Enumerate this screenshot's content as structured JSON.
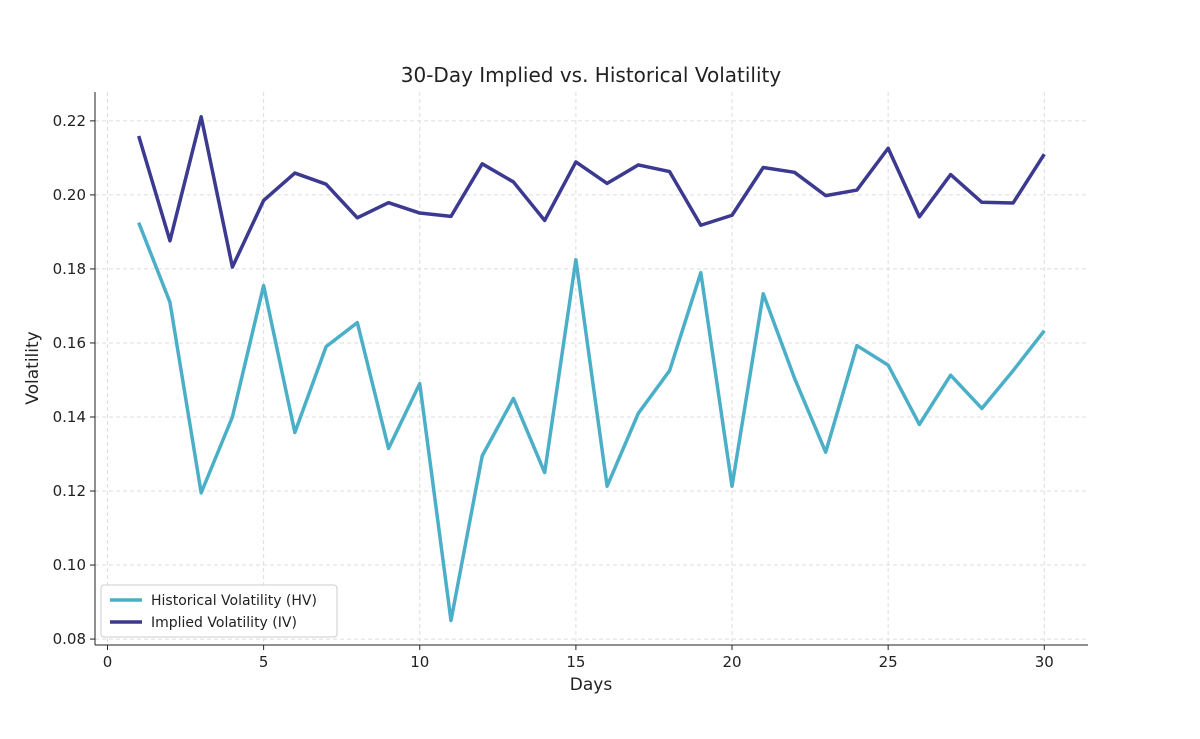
{
  "chart_data": {
    "type": "line",
    "title": "30-Day Implied vs. Historical Volatility",
    "xlabel": "Days",
    "ylabel": "Volatility",
    "xlim": [
      -0.4,
      31.4
    ],
    "ylim": [
      0.0784,
      0.2278
    ],
    "xticks": [
      0,
      5,
      10,
      15,
      20,
      25,
      30
    ],
    "yticks": [
      0.08,
      0.1,
      0.12,
      0.14,
      0.16,
      0.18,
      0.2,
      0.22
    ],
    "ytick_labels": [
      "0.08",
      "0.10",
      "0.12",
      "0.14",
      "0.16",
      "0.18",
      "0.20",
      "0.22"
    ],
    "grid": true,
    "legend_position": "lower-left",
    "x": [
      1,
      2,
      3,
      4,
      5,
      6,
      7,
      8,
      9,
      10,
      11,
      12,
      13,
      14,
      15,
      16,
      17,
      18,
      19,
      20,
      21,
      22,
      23,
      24,
      25,
      26,
      27,
      28,
      29,
      30
    ],
    "series": [
      {
        "name": "Historical Volatility (HV)",
        "color": "#4bafc8",
        "values": [
          0.1925,
          0.171,
          0.1195,
          0.14,
          0.1755,
          0.1358,
          0.159,
          0.1655,
          0.1315,
          0.149,
          0.085,
          0.1295,
          0.145,
          0.125,
          0.1825,
          0.1213,
          0.141,
          0.1525,
          0.179,
          0.1213,
          0.1733,
          0.1505,
          0.1305,
          0.1593,
          0.154,
          0.138,
          0.1513,
          0.1423,
          0.1525,
          0.1633
        ]
      },
      {
        "name": "Implied Volatility (IV)",
        "color": "#3b3990",
        "values": [
          0.2159,
          0.1876,
          0.2211,
          0.1805,
          0.1985,
          0.2059,
          0.2029,
          0.1938,
          0.1979,
          0.1951,
          0.1942,
          0.2084,
          0.2035,
          0.1931,
          0.2089,
          0.2031,
          0.2081,
          0.2063,
          0.1918,
          0.1945,
          0.2074,
          0.2061,
          0.1998,
          0.2013,
          0.2126,
          0.1941,
          0.2055,
          0.198,
          0.1978,
          0.211
        ]
      }
    ]
  }
}
